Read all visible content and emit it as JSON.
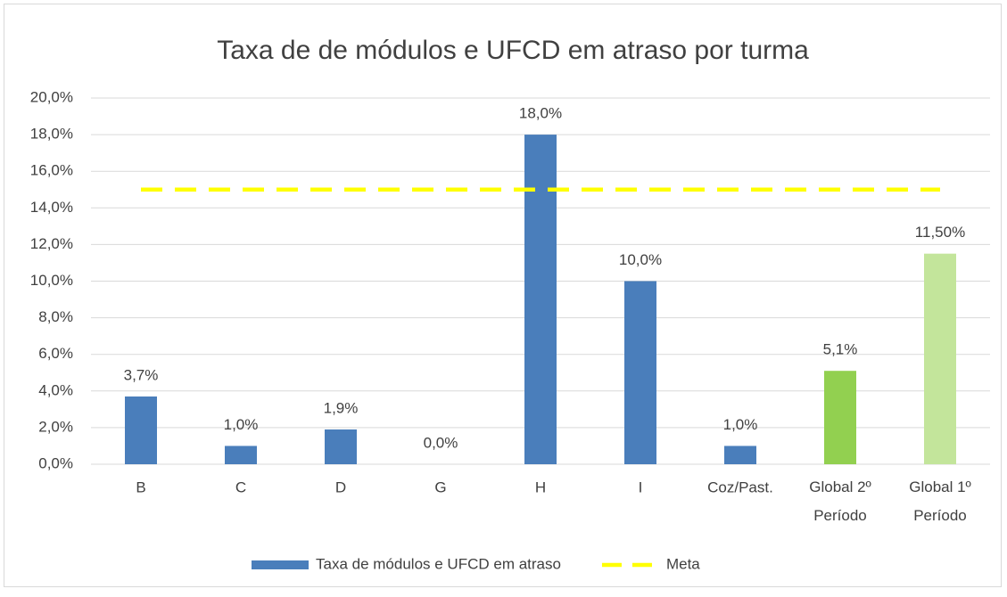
{
  "chart_data": {
    "type": "bar",
    "title": "Taxa de de módulos e UFCD em atraso por turma",
    "categories": [
      "B",
      "C",
      "D",
      "G",
      "H",
      "I",
      "Coz/Past.",
      "Global 2º Período",
      "Global 1º Período"
    ],
    "series": [
      {
        "name": "Taxa de módulos e UFCD em atraso",
        "color": "#4a7ebb",
        "colors": [
          "#4a7ebb",
          "#4a7ebb",
          "#4a7ebb",
          "#4a7ebb",
          "#4a7ebb",
          "#4a7ebb",
          "#4a7ebb",
          "#92d050",
          "#c3e59b"
        ],
        "values": [
          3.7,
          1.0,
          1.9,
          0.0,
          18.0,
          10.0,
          1.0,
          5.1,
          11.5
        ],
        "value_labels": [
          "3,7%",
          "1,0%",
          "1,9%",
          "0,0%",
          "18,0%",
          "10,0%",
          "1,0%",
          "5,1%",
          "11,50%"
        ]
      },
      {
        "name": "Meta",
        "type": "line",
        "dashed": true,
        "color": "#ffff00",
        "values": [
          15,
          15,
          15,
          15,
          15,
          15,
          15,
          15,
          15
        ]
      }
    ],
    "ylim": [
      0,
      20
    ],
    "yticks": [
      {
        "value": 0,
        "label": "0,0%"
      },
      {
        "value": 2,
        "label": "2,0%"
      },
      {
        "value": 4,
        "label": "4,0%"
      },
      {
        "value": 6,
        "label": "6,0%"
      },
      {
        "value": 8,
        "label": "8,0%"
      },
      {
        "value": 10,
        "label": "10,0%"
      },
      {
        "value": 12,
        "label": "12,0%"
      },
      {
        "value": 14,
        "label": "14,0%"
      },
      {
        "value": 16,
        "label": "16,0%"
      },
      {
        "value": 18,
        "label": "18,0%"
      },
      {
        "value": 20,
        "label": "20,0%"
      }
    ],
    "grid": true,
    "legend": "bottom"
  }
}
